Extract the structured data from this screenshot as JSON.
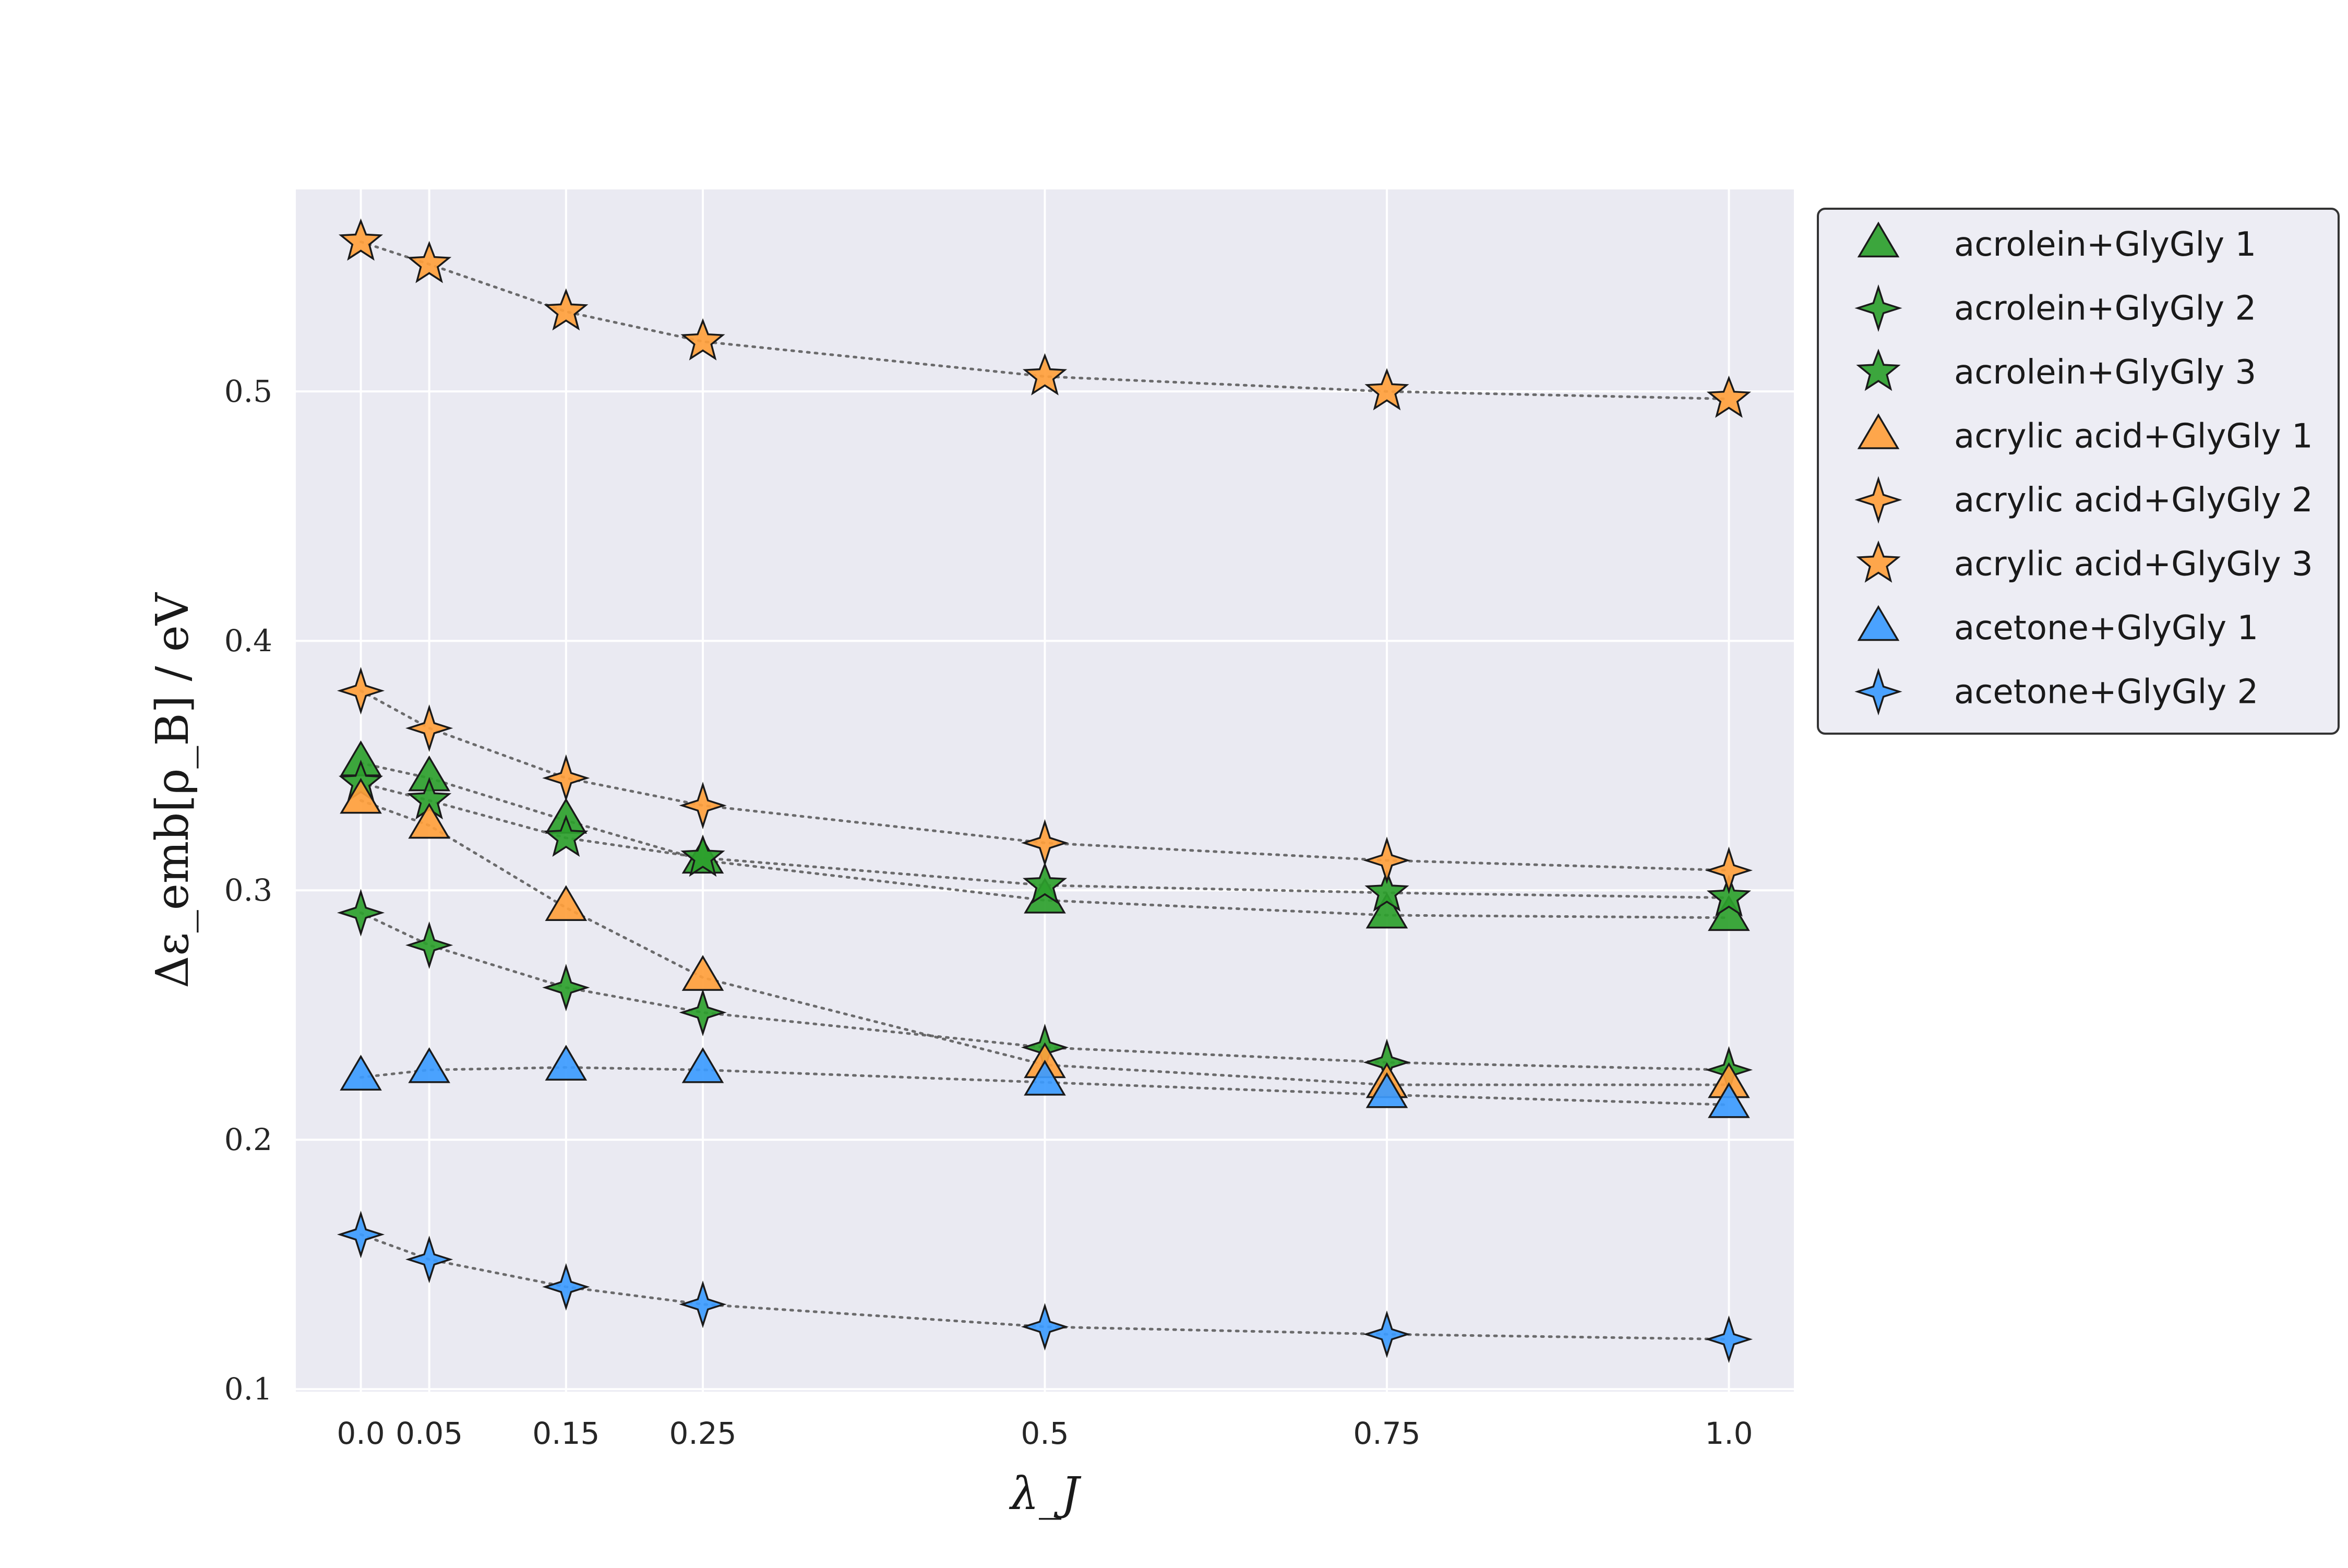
{
  "chart_data": {
    "type": "line",
    "xlabel": "λ_J",
    "ylabel": "Δε_emb[ρ_B] / eV",
    "xlim": [
      -0.095,
      2.095
    ],
    "ylim": [
      0.099,
      0.581
    ],
    "grid": true,
    "legend_position": "outside-right",
    "x_ticks": [
      {
        "label": "0.0",
        "x": 0.0
      },
      {
        "label": "0.05",
        "x": 0.1
      },
      {
        "label": "0.15",
        "x": 0.3
      },
      {
        "label": "0.25",
        "x": 0.5
      },
      {
        "label": "0.5",
        "x": 1.0
      },
      {
        "label": "0.75",
        "x": 1.5
      },
      {
        "label": "1.0",
        "x": 2.0
      }
    ],
    "y_ticks": [
      "0.1",
      "0.2",
      "0.3",
      "0.4",
      "0.5"
    ],
    "colors": {
      "green": "#2ca02c",
      "orange": "#ffa03c",
      "blue": "#3c9bff",
      "grid": "#ffffff",
      "plot_bg": "#eaeaf2"
    },
    "series": [
      {
        "name": "acrolein+GlyGly 1",
        "marker": "triangle",
        "color": "#2ca02c",
        "x": [
          0.0,
          0.1,
          0.3,
          0.5,
          1.0,
          1.5,
          2.0
        ],
        "values": [
          0.351,
          0.345,
          0.328,
          0.312,
          0.296,
          0.29,
          0.289
        ]
      },
      {
        "name": "acrolein+GlyGly 2",
        "marker": "four-point-star",
        "color": "#2ca02c",
        "x": [
          0.0,
          0.1,
          0.3,
          0.5,
          1.0,
          1.5,
          2.0
        ],
        "values": [
          0.291,
          0.278,
          0.261,
          0.251,
          0.237,
          0.231,
          0.228
        ]
      },
      {
        "name": "acrolein+GlyGly 3",
        "marker": "five-point-star",
        "color": "#2ca02c",
        "x": [
          0.0,
          0.1,
          0.3,
          0.5,
          1.0,
          1.5,
          2.0
        ],
        "values": [
          0.343,
          0.336,
          0.321,
          0.313,
          0.302,
          0.299,
          0.297
        ]
      },
      {
        "name": "acrylic acid+GlyGly 1",
        "marker": "triangle",
        "color": "#ffa03c",
        "x": [
          0.0,
          0.1,
          0.3,
          0.5,
          1.0,
          1.5,
          2.0
        ],
        "values": [
          0.336,
          0.326,
          0.293,
          0.265,
          0.23,
          0.222,
          0.222
        ]
      },
      {
        "name": "acrylic acid+GlyGly 2",
        "marker": "four-point-star",
        "color": "#ffa03c",
        "x": [
          0.0,
          0.1,
          0.3,
          0.5,
          1.0,
          1.5,
          2.0
        ],
        "values": [
          0.38,
          0.365,
          0.345,
          0.334,
          0.319,
          0.312,
          0.308
        ]
      },
      {
        "name": "acrylic acid+GlyGly 3",
        "marker": "five-point-star",
        "color": "#ffa03c",
        "x": [
          0.0,
          0.1,
          0.3,
          0.5,
          1.0,
          1.5,
          2.0
        ],
        "values": [
          0.56,
          0.551,
          0.532,
          0.52,
          0.506,
          0.5,
          0.497
        ]
      },
      {
        "name": "acetone+GlyGly 1",
        "marker": "triangle",
        "color": "#3c9bff",
        "x": [
          0.0,
          0.1,
          0.3,
          0.5,
          1.0,
          1.5,
          2.0
        ],
        "values": [
          0.225,
          0.228,
          0.229,
          0.228,
          0.223,
          0.218,
          0.214
        ]
      },
      {
        "name": "acetone+GlyGly 2",
        "marker": "four-point-star",
        "color": "#3c9bff",
        "x": [
          0.0,
          0.1,
          0.3,
          0.5,
          1.0,
          1.5,
          2.0
        ],
        "values": [
          0.162,
          0.152,
          0.141,
          0.134,
          0.125,
          0.122,
          0.12
        ]
      }
    ]
  }
}
